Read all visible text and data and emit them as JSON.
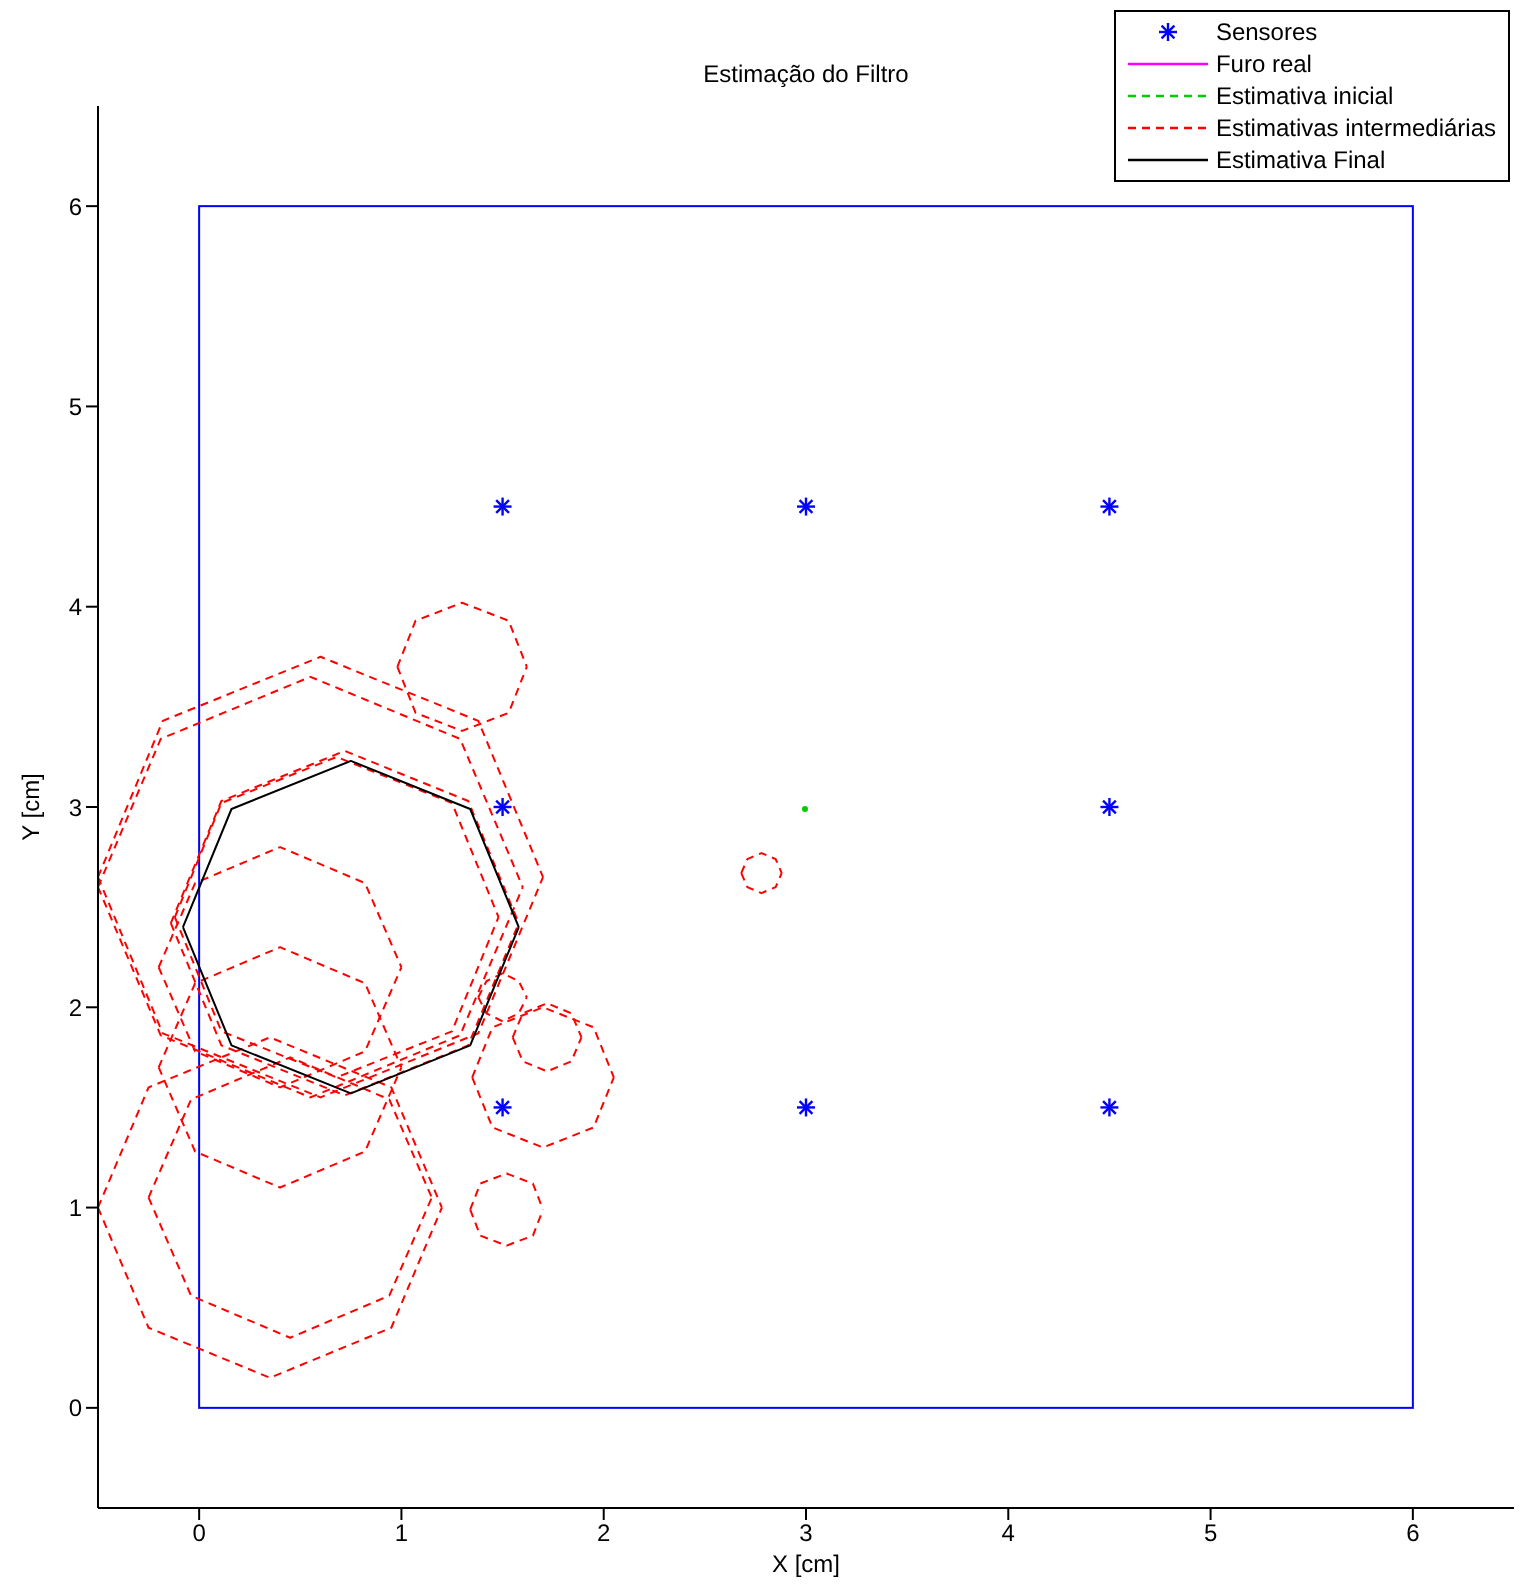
{
  "chart_data": {
    "type": "line",
    "title": "Estimação do Filtro",
    "xlabel": "X [cm]",
    "ylabel": "Y [cm]",
    "xlim": [
      -0.5,
      6.5
    ],
    "ylim": [
      -0.5,
      6.5
    ],
    "xticks": [
      0,
      1,
      2,
      3,
      4,
      5,
      6
    ],
    "yticks": [
      0,
      1,
      2,
      3,
      4,
      5,
      6
    ],
    "grid": false,
    "legend": "top right",
    "series": [
      {
        "name": "Sensores",
        "type": "scatter",
        "color": "#0000ff",
        "marker": "cross",
        "x": [
          1.5,
          3,
          4.5,
          1.5,
          4.5,
          1.5,
          3,
          4.5
        ],
        "values": [
          4.5,
          4.5,
          4.5,
          3,
          3,
          1.5,
          1.5,
          1.5
        ]
      },
      {
        "name": "Furo real",
        "color": "#ff00ff",
        "line_style": "solid"
      },
      {
        "name": "Estimativa inicial",
        "type": "scatter",
        "marker": "circle",
        "color": "#00cc00",
        "line_style": "dashed",
        "x": [
          2.995
        ],
        "values": [
          2.99
        ]
      },
      {
        "name": "Estimativas intermediárias",
        "color": "#ff0000",
        "line_style": "dashed",
        "x": [
          -0.5,
          -0.18,
          0.6,
          1.38,
          1.7
        ],
        "values": [
          2.65,
          3.43,
          3.75,
          3.43,
          2.65
        ]
      },
      {
        "color": "#ff0000",
        "line_style": "dashed",
        "x": [
          -0.5,
          -0.18,
          0.6,
          1.38,
          1.7
        ],
        "values": [
          2.65,
          1.87,
          1.55,
          1.87,
          2.65
        ]
      },
      {
        "color": "#ff0000",
        "line_style": "dashed",
        "x": [
          -0.5,
          -0.19,
          0.55,
          1.29,
          1.6
        ],
        "values": [
          2.6,
          3.34,
          3.65,
          3.34,
          2.6
        ]
      },
      {
        "color": "#ff0000",
        "line_style": "dashed",
        "x": [
          -0.5,
          -0.19,
          0.55,
          1.29,
          1.6
        ],
        "values": [
          2.6,
          1.86,
          1.55,
          1.86,
          2.6
        ]
      },
      {
        "color": "#ff0000",
        "line_style": "dashed",
        "x": [
          -0.14,
          0.11,
          0.72,
          1.33,
          1.58
        ],
        "values": [
          2.42,
          3.03,
          3.28,
          3.03,
          2.42
        ]
      },
      {
        "color": "#ff0000",
        "line_style": "dashed",
        "x": [
          -0.14,
          0.11,
          0.72,
          1.33,
          1.58
        ],
        "values": [
          2.42,
          1.81,
          1.56,
          1.81,
          2.42
        ]
      },
      {
        "color": "#ff0000",
        "line_style": "dashed",
        "x": [
          -0.12,
          0.11,
          0.68,
          1.25,
          1.48
        ],
        "values": [
          2.45,
          3.02,
          3.25,
          3.02,
          2.45
        ]
      },
      {
        "color": "#ff0000",
        "line_style": "dashed",
        "x": [
          -0.12,
          0.11,
          0.68,
          1.25,
          1.48
        ],
        "values": [
          2.45,
          1.88,
          1.65,
          1.88,
          2.45
        ]
      },
      {
        "color": "#ff0000",
        "line_style": "dashed",
        "x": [
          0.98,
          1.07,
          1.3,
          1.53,
          1.62
        ],
        "values": [
          3.7,
          3.93,
          4.02,
          3.93,
          3.7
        ]
      },
      {
        "color": "#ff0000",
        "line_style": "dashed",
        "x": [
          0.98,
          1.07,
          1.3,
          1.53,
          1.62
        ],
        "values": [
          3.7,
          3.47,
          3.38,
          3.47,
          3.7
        ]
      },
      {
        "color": "#ff0000",
        "line_style": "dashed",
        "x": [
          -0.5,
          -0.25,
          0.35,
          0.95,
          1.2
        ],
        "values": [
          1.0,
          1.6,
          1.85,
          1.6,
          1.0
        ]
      },
      {
        "color": "#ff0000",
        "line_style": "dashed",
        "x": [
          -0.5,
          -0.25,
          0.35,
          0.95,
          1.2
        ],
        "values": [
          1.0,
          0.4,
          0.15,
          0.4,
          1.0
        ]
      },
      {
        "color": "#ff0000",
        "line_style": "dashed",
        "x": [
          -0.25,
          -0.04,
          0.45,
          0.94,
          1.15
        ],
        "values": [
          1.05,
          1.54,
          1.75,
          1.54,
          1.05
        ]
      },
      {
        "color": "#ff0000",
        "line_style": "dashed",
        "x": [
          -0.25,
          -0.04,
          0.45,
          0.94,
          1.15
        ],
        "values": [
          1.05,
          0.56,
          0.35,
          0.56,
          1.05
        ]
      },
      {
        "color": "#ff0000",
        "line_style": "dashed",
        "x": [
          -0.2,
          -0.02,
          0.4,
          0.82,
          1.0
        ],
        "values": [
          1.7,
          2.12,
          2.3,
          2.12,
          1.7
        ]
      },
      {
        "color": "#ff0000",
        "line_style": "dashed",
        "x": [
          -0.2,
          -0.02,
          0.4,
          0.82,
          1.0
        ],
        "values": [
          1.7,
          1.28,
          1.1,
          1.28,
          1.7
        ]
      },
      {
        "color": "#ff0000",
        "line_style": "dashed",
        "x": [
          -0.2,
          -0.02,
          0.4,
          0.82,
          1.0
        ],
        "values": [
          2.2,
          2.62,
          2.8,
          2.62,
          2.2
        ]
      },
      {
        "color": "#ff0000",
        "line_style": "dashed",
        "x": [
          -0.2,
          -0.02,
          0.4,
          0.82,
          1.0
        ],
        "values": [
          2.2,
          1.78,
          1.6,
          1.78,
          2.2
        ]
      },
      {
        "color": "#ff0000",
        "line_style": "dashed",
        "x": [
          1.35,
          1.45,
          1.7,
          1.95,
          2.05
        ],
        "values": [
          1.65,
          1.9,
          2.0,
          1.9,
          1.65
        ]
      },
      {
        "color": "#ff0000",
        "line_style": "dashed",
        "x": [
          1.35,
          1.45,
          1.7,
          1.95,
          2.05
        ],
        "values": [
          1.65,
          1.4,
          1.3,
          1.4,
          1.65
        ]
      },
      {
        "color": "#ff0000",
        "line_style": "dashed",
        "x": [
          1.55,
          1.6,
          1.72,
          1.84,
          1.89
        ],
        "values": [
          1.85,
          1.97,
          2.02,
          1.97,
          1.85
        ]
      },
      {
        "color": "#ff0000",
        "line_style": "dashed",
        "x": [
          1.55,
          1.6,
          1.72,
          1.84,
          1.89
        ],
        "values": [
          1.85,
          1.73,
          1.68,
          1.73,
          1.85
        ]
      },
      {
        "color": "#ff0000",
        "line_style": "dashed",
        "x": [
          1.34,
          1.39,
          1.52,
          1.65,
          1.7
        ],
        "values": [
          0.99,
          1.12,
          1.17,
          1.12,
          0.99
        ]
      },
      {
        "color": "#ff0000",
        "line_style": "dashed",
        "x": [
          1.34,
          1.39,
          1.52,
          1.65,
          1.7
        ],
        "values": [
          0.99,
          0.86,
          0.81,
          0.86,
          0.99
        ]
      },
      {
        "color": "#ff0000",
        "line_style": "dashed",
        "x": [
          2.68,
          2.71,
          2.78,
          2.85,
          2.88
        ],
        "values": [
          2.67,
          2.74,
          2.77,
          2.74,
          2.67
        ]
      },
      {
        "color": "#ff0000",
        "line_style": "dashed",
        "x": [
          2.68,
          2.71,
          2.78,
          2.85,
          2.88
        ],
        "values": [
          2.67,
          2.6,
          2.57,
          2.6,
          2.67
        ]
      },
      {
        "color": "#ff0000",
        "line_style": "dashed",
        "x": [
          1.38,
          1.42,
          1.5,
          1.58,
          1.62
        ],
        "values": [
          2.05,
          2.13,
          2.17,
          2.13,
          2.05
        ]
      },
      {
        "color": "#ff0000",
        "line_style": "dashed",
        "x": [
          1.38,
          1.42,
          1.5,
          1.58,
          1.62
        ],
        "values": [
          2.05,
          1.97,
          1.93,
          1.97,
          2.05
        ]
      },
      {
        "name": "Estimativa Final",
        "color": "#000000",
        "line_style": "solid",
        "x": [
          -0.08,
          0.16,
          0.75,
          1.34,
          1.58
        ],
        "values": [
          2.4,
          2.99,
          3.23,
          2.99,
          2.4
        ]
      },
      {
        "color": "#000000",
        "line_style": "solid",
        "x": [
          -0.08,
          0.16,
          0.75,
          1.34,
          1.58
        ],
        "values": [
          2.4,
          1.81,
          1.57,
          1.81,
          2.4
        ]
      }
    ]
  }
}
